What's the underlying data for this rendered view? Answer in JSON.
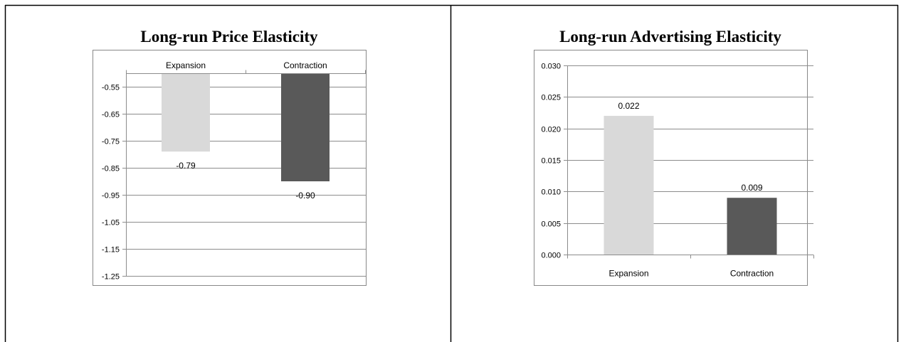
{
  "chart_data": [
    {
      "type": "bar",
      "title": "Long-run Price Elasticity",
      "categories": [
        "Expansion",
        "Contraction"
      ],
      "values": [
        -0.79,
        -0.9
      ],
      "value_labels": [
        "-0.79",
        "-0.90"
      ],
      "colors": [
        "#d9d9d9",
        "#595959"
      ],
      "ylim": [
        -1.25,
        -0.5
      ],
      "yticks": [
        -0.55,
        -0.65,
        -0.75,
        -0.85,
        -0.95,
        -1.05,
        -1.15,
        -1.25
      ],
      "ytick_labels": [
        "-0.55",
        "-0.65",
        "-0.75",
        "-0.85",
        "-0.95",
        "-1.05",
        "-1.15",
        "-1.25"
      ],
      "category_axis": "top",
      "grid": true,
      "legend": "none",
      "xlabel": "",
      "ylabel": ""
    },
    {
      "type": "bar",
      "title": "Long-run Advertising Elasticity",
      "categories": [
        "Expansion",
        "Contraction"
      ],
      "values": [
        0.022,
        0.009
      ],
      "value_labels": [
        "0.022",
        "0.009"
      ],
      "colors": [
        "#d9d9d9",
        "#595959"
      ],
      "ylim": [
        0,
        0.03
      ],
      "yticks": [
        0.0,
        0.005,
        0.01,
        0.015,
        0.02,
        0.025,
        0.03
      ],
      "ytick_labels": [
        "0.000",
        "0.005",
        "0.010",
        "0.015",
        "0.020",
        "0.025",
        "0.030"
      ],
      "category_axis": "bottom",
      "grid": true,
      "legend": "none",
      "xlabel": "",
      "ylabel": ""
    }
  ]
}
